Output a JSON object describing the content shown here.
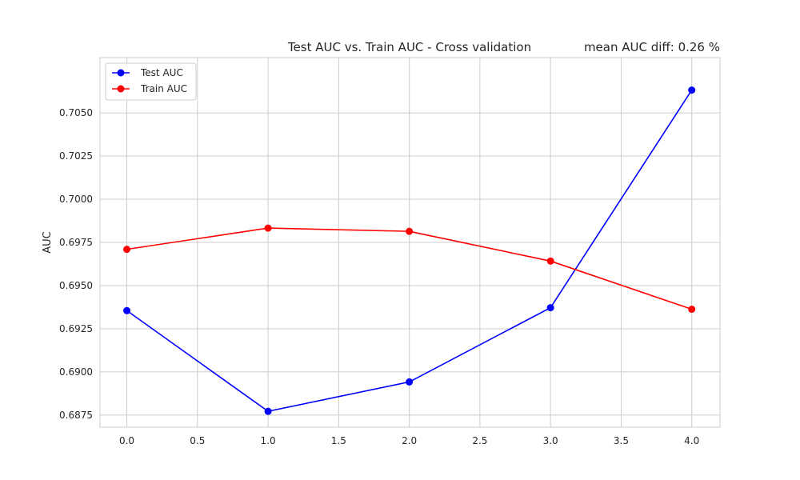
{
  "chart_data": {
    "type": "line",
    "title": "Test AUC vs. Train AUC - Cross validation",
    "annotation": "mean AUC diff: 0.26 %",
    "xlabel": "",
    "ylabel": "AUC",
    "x": [
      0,
      1,
      2,
      3,
      4
    ],
    "xlim": [
      -0.19,
      4.2
    ],
    "ylim": [
      0.6868,
      0.7082
    ],
    "xticks": [
      0.0,
      0.5,
      1.0,
      1.5,
      2.0,
      2.5,
      3.0,
      3.5,
      4.0
    ],
    "xtick_labels": [
      "0.0",
      "0.5",
      "1.0",
      "1.5",
      "2.0",
      "2.5",
      "3.0",
      "3.5",
      "4.0"
    ],
    "yticks": [
      0.6875,
      0.69,
      0.6925,
      0.695,
      0.6975,
      0.7,
      0.7025,
      0.705
    ],
    "ytick_labels": [
      "0.6875",
      "0.6900",
      "0.6925",
      "0.6950",
      "0.6975",
      "0.7000",
      "0.7025",
      "0.7050"
    ],
    "grid": true,
    "legend_position": "top-left",
    "series": [
      {
        "name": "Test AUC",
        "color": "#0000ff",
        "values": [
          0.69355,
          0.68772,
          0.68942,
          0.69372,
          0.70632
        ]
      },
      {
        "name": "Train AUC",
        "color": "#ff0000",
        "values": [
          0.6971,
          0.69833,
          0.69814,
          0.69642,
          0.69363
        ]
      }
    ]
  }
}
